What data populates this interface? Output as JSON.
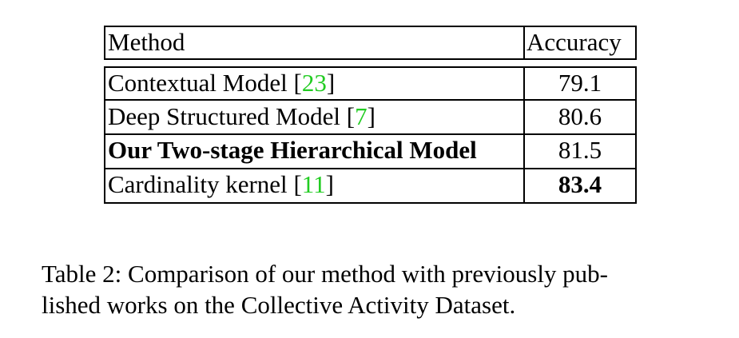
{
  "table": {
    "headers": {
      "method": "Method",
      "accuracy": "Accuracy"
    },
    "rows": [
      {
        "method": "Contextual Model",
        "cite": "23",
        "accuracy": "79.1",
        "method_bold": false,
        "accuracy_bold": false
      },
      {
        "method": "Deep Structured Model",
        "cite": "7",
        "accuracy": "80.6",
        "method_bold": false,
        "accuracy_bold": false
      },
      {
        "method": "Our Two-stage Hierarchical Model",
        "cite": "",
        "accuracy": "81.5",
        "method_bold": true,
        "accuracy_bold": false
      },
      {
        "method": "Cardinality kernel",
        "cite": "11",
        "accuracy": "83.4",
        "method_bold": false,
        "accuracy_bold": true
      }
    ]
  },
  "caption": {
    "line1": "Table 2:  Comparison of our method with previously pub-",
    "line2": "lished works on the Collective Activity Dataset."
  },
  "colors": {
    "citation": "#22cc22",
    "rule": "#000000"
  }
}
